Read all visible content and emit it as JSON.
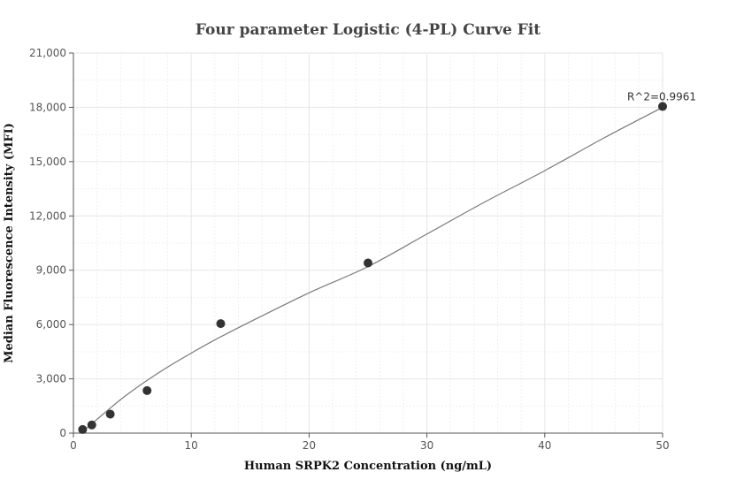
{
  "chart_data": {
    "type": "scatter",
    "title": "Four parameter Logistic (4-PL) Curve Fit",
    "xlabel": "Human SRPK2 Concentration (ng/mL)",
    "ylabel": "Median Fluorescence Intensity (MFI)",
    "xlim": [
      0,
      50
    ],
    "ylim": [
      0,
      21000
    ],
    "x_ticks": [
      0,
      10,
      20,
      30,
      40,
      50
    ],
    "x_tick_labels": [
      "0",
      "10",
      "20",
      "30",
      "40",
      "50"
    ],
    "y_ticks": [
      0,
      3000,
      6000,
      9000,
      12000,
      15000,
      18000,
      21000
    ],
    "y_tick_labels": [
      "0",
      "3,000",
      "6,000",
      "9,000",
      "12,000",
      "15,000",
      "18,000",
      "21,000"
    ],
    "grid": true,
    "series": [
      {
        "x": [
          0.78,
          1.56,
          3.125,
          6.25,
          12.5,
          25,
          50
        ],
        "y": [
          200,
          450,
          1050,
          2350,
          6050,
          9400,
          18050
        ]
      }
    ],
    "fit_curve": {
      "x": [
        0.78,
        2,
        4,
        6,
        8,
        10,
        12,
        15,
        20,
        25,
        30,
        35,
        40,
        45,
        50
      ],
      "y": [
        90,
        760,
        1850,
        2800,
        3650,
        4420,
        5150,
        6150,
        7750,
        9200,
        11000,
        12800,
        14500,
        16300,
        18000
      ]
    },
    "annotation": "R^2=0.9961"
  }
}
